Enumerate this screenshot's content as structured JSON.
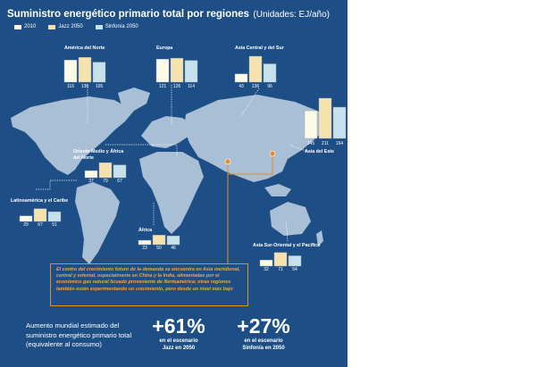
{
  "title": "Suministro energético primario total por regiones",
  "units": "(Unidades: EJ/año)",
  "legend": [
    {
      "label": "2010",
      "color": "#fdfbe6"
    },
    {
      "label": "Jazz 2050",
      "color": "#f6e2ad"
    },
    {
      "label": "Sinfonía 2050",
      "color": "#c6e1ec"
    }
  ],
  "chart_data": {
    "type": "bar",
    "title": "Suministro energético primario total por regiones",
    "ylabel": "EJ/año",
    "series_names": [
      "2010",
      "Jazz 2050",
      "Sinfonía 2050"
    ],
    "regions": [
      {
        "name": "América del Norte",
        "values": [
          116,
          130,
          105
        ],
        "labels": [
          "116",
          "130",
          "105"
        ]
      },
      {
        "name": "Europa",
        "values": [
          121,
          126,
          114
        ],
        "labels": [
          "121",
          "126",
          "114"
        ]
      },
      {
        "name": "Asia Central y del Sur",
        "values": [
          43,
          136,
          96
        ],
        "labels": [
          "43",
          "136",
          "96"
        ]
      },
      {
        "name": "Asia del Este",
        "values": [
          145,
          211,
          164
        ],
        "labels": [
          "145",
          "211",
          "164"
        ]
      },
      {
        "name": "Oriente Medio y África del Norte",
        "values": [
          37,
          79,
          67
        ],
        "labels": [
          "37",
          "79",
          "67"
        ]
      },
      {
        "name": "Latinoamérica y el Caribe",
        "values": [
          29,
          67,
          51
        ],
        "labels": [
          "29",
          "67",
          "51"
        ]
      },
      {
        "name": "África",
        "values": [
          23,
          50,
          46
        ],
        "labels": [
          "23",
          "50",
          "46"
        ]
      },
      {
        "name": "Asia Sur-Oriental y el Pacífico",
        "values": [
          32,
          71,
          54
        ],
        "labels": [
          "32",
          "71",
          "54"
        ]
      }
    ]
  },
  "callout": "El centro del crecimiento futuro de la demanda se encuentra en Asia meridional, central y oriental, especialmente en China y la India, alimentadas por el económico gas natural licuado proveniente de Norteamérica; otras regiones también están experimentando un crecimiento, pero desde un nivel más bajo",
  "footer": {
    "label": "Aumento mundial estimado del suministro energético primario total (equivalente al consumo)",
    "jazz_value": "+61%",
    "jazz_caption": "en el escenario Jazz en 2050",
    "sinfonia_value": "+27%",
    "sinfonia_caption": "en el escenario Sinfonía en 2050"
  }
}
